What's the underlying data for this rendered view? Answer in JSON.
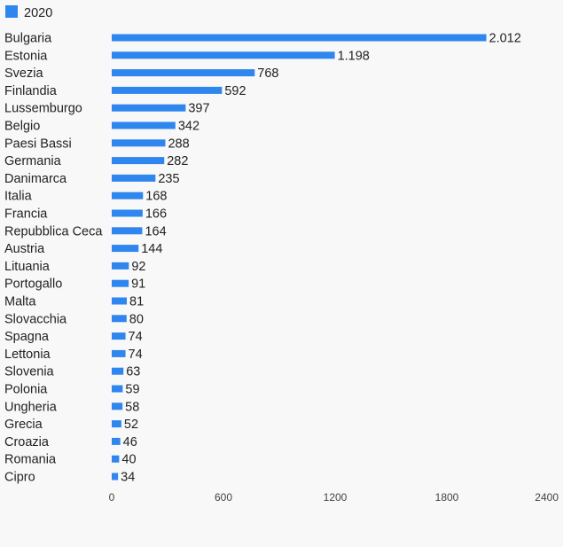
{
  "chart_data": {
    "type": "bar",
    "orientation": "horizontal",
    "legend_position": "top-left",
    "grid": false,
    "bar_color": "#2e86ee",
    "series": [
      {
        "name": "2020",
        "categories": [
          "Bulgaria",
          "Estonia",
          "Svezia",
          "Finlandia",
          "Lussemburgo",
          "Belgio",
          "Paesi Bassi",
          "Germania",
          "Danimarca",
          "Italia",
          "Francia",
          "Repubblica Ceca",
          "Austria",
          "Lituania",
          "Portogallo",
          "Malta",
          "Slovacchia",
          "Spagna",
          "Lettonia",
          "Slovenia",
          "Polonia",
          "Ungheria",
          "Grecia",
          "Croazia",
          "Romania",
          "Cipro"
        ],
        "values": [
          2012,
          1198,
          768,
          592,
          397,
          342,
          288,
          282,
          235,
          168,
          166,
          164,
          144,
          92,
          91,
          81,
          80,
          74,
          74,
          63,
          59,
          58,
          52,
          46,
          40,
          34
        ],
        "value_labels": [
          "2.012",
          "1.198",
          "768",
          "592",
          "397",
          "342",
          "288",
          "282",
          "235",
          "168",
          "166",
          "164",
          "144",
          "92",
          "91",
          "81",
          "80",
          "74",
          "74",
          "63",
          "59",
          "58",
          "52",
          "46",
          "40",
          "34"
        ]
      }
    ],
    "xlim": [
      0,
      2400
    ],
    "x_ticks": [
      0,
      600,
      1200,
      1800,
      2400
    ],
    "x_tick_labels": [
      "0",
      "600",
      "1200",
      "1800",
      "2400"
    ]
  }
}
